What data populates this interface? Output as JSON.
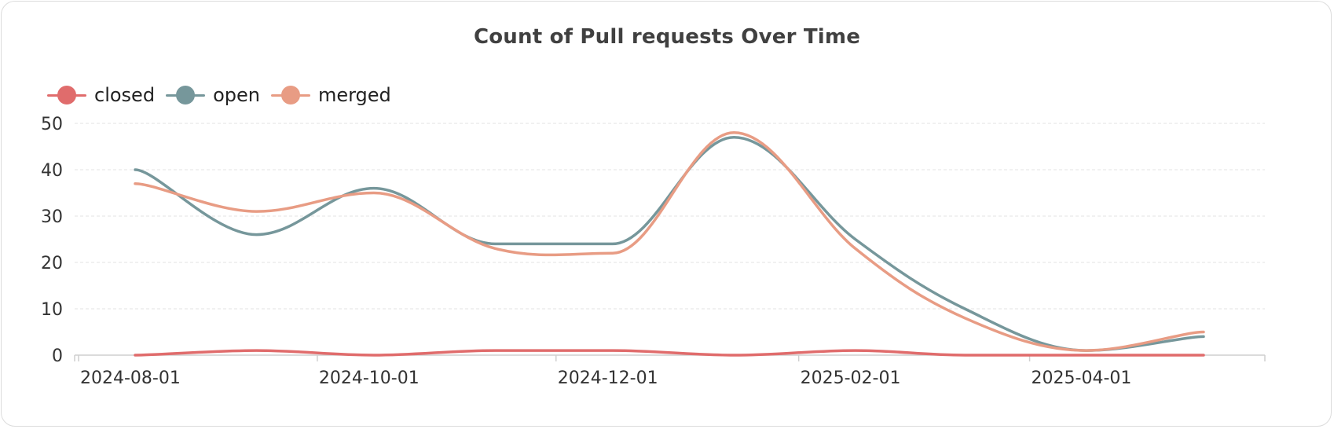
{
  "chart_data": {
    "type": "line",
    "title": "Count of Pull requests Over Time",
    "xlabel": "",
    "ylabel": "",
    "x": [
      "2024-08-01",
      "2024-09-01",
      "2024-10-01",
      "2024-11-01",
      "2024-12-01",
      "2025-01-01",
      "2025-02-01",
      "2025-03-01",
      "2025-04-01",
      "2025-05-01"
    ],
    "x_ticks": [
      "2024-08-01",
      "2024-10-01",
      "2024-12-01",
      "2025-02-01",
      "2025-04-01"
    ],
    "ylim": [
      0,
      50
    ],
    "y_ticks": [
      0,
      10,
      20,
      30,
      40,
      50
    ],
    "grid": true,
    "legend_position": "top-left",
    "series": [
      {
        "name": "closed",
        "color": "#e06c6c",
        "values": [
          0,
          1,
          0,
          1,
          1,
          0,
          1,
          0,
          0,
          0
        ]
      },
      {
        "name": "open",
        "color": "#76979b",
        "values": [
          40,
          26,
          36,
          24,
          24,
          47,
          25,
          10,
          1,
          4
        ]
      },
      {
        "name": "merged",
        "color": "#e89c84",
        "values": [
          37,
          31,
          35,
          23,
          22,
          48,
          23,
          8,
          1,
          5
        ]
      }
    ]
  }
}
